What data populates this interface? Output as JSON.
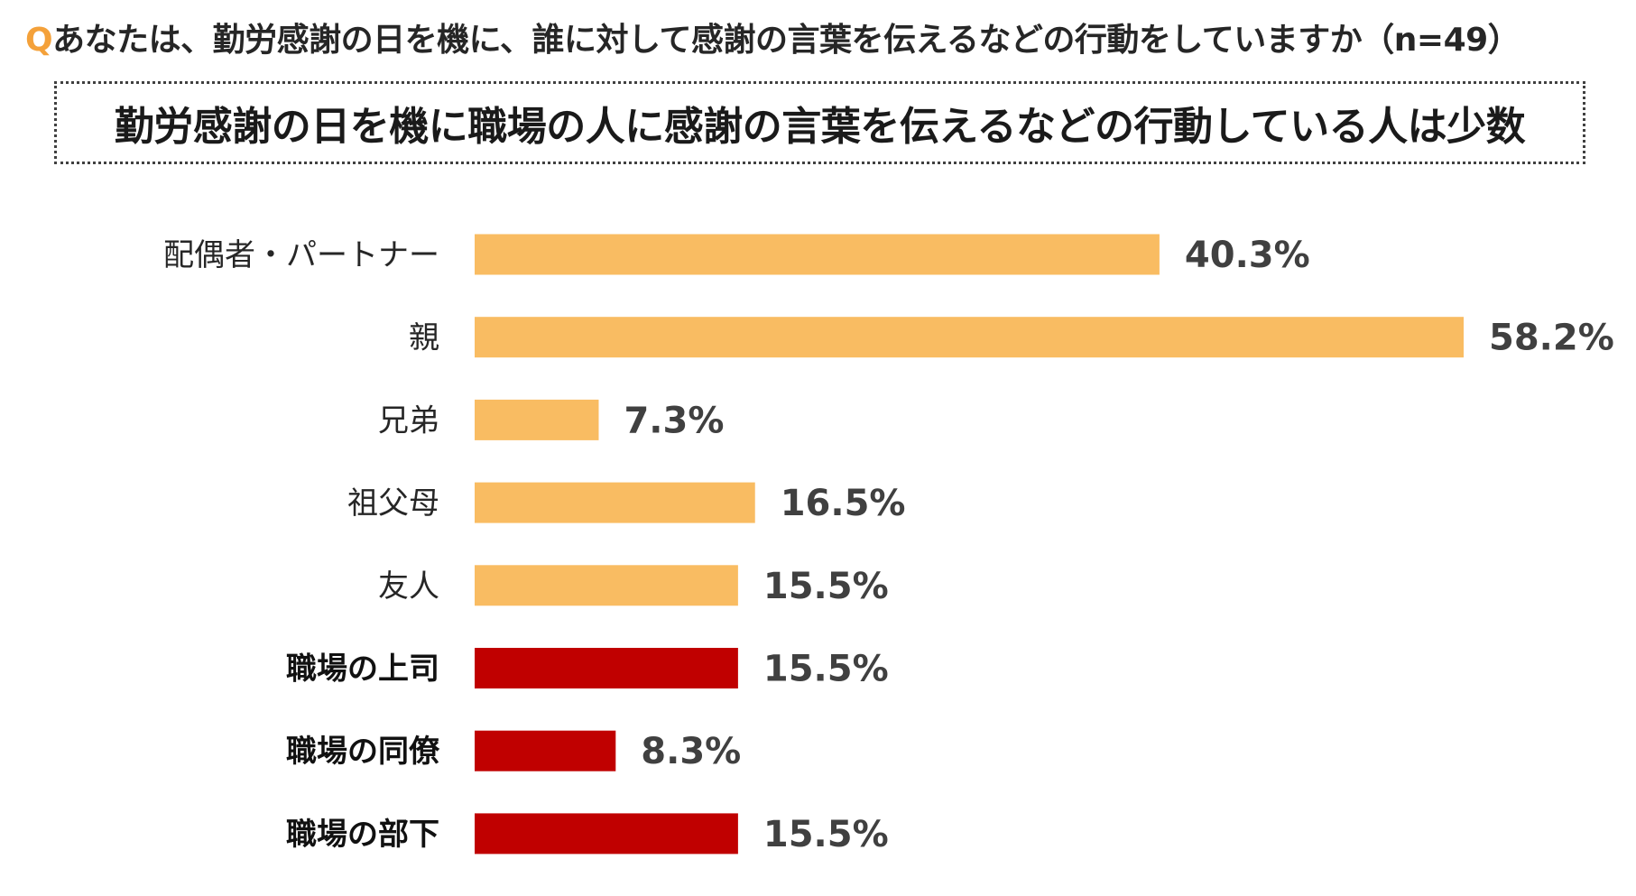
{
  "question": {
    "mark": "Q",
    "text": "あなたは、勤労感謝の日を機に、誰に対して感謝の言葉を伝えるなどの行動をしていますか（n=49）"
  },
  "summary": {
    "text": "勤労感謝の日を機に職場の人に感謝の言葉を伝えるなどの行動している人は少数"
  },
  "colors": {
    "normal": "#f9bc62",
    "workplace": "#c00000"
  },
  "chart_data": {
    "type": "bar",
    "orientation": "horizontal",
    "categories": [
      "配偶者・パートナー",
      "親",
      "兄弟",
      "祖父母",
      "友人",
      "職場の上司",
      "職場の同僚",
      "職場の部下"
    ],
    "values": [
      40.3,
      58.2,
      7.3,
      16.5,
      15.5,
      15.5,
      8.3,
      15.5
    ],
    "value_labels": [
      "40.3%",
      "58.2%",
      "7.3%",
      "16.5%",
      "15.5%",
      "15.5%",
      "8.3%",
      "15.5%"
    ],
    "highlight": [
      false,
      false,
      false,
      false,
      false,
      true,
      true,
      true
    ],
    "unit": "%",
    "xlim": [
      0,
      58.2
    ],
    "grid": false,
    "legend": "none"
  }
}
